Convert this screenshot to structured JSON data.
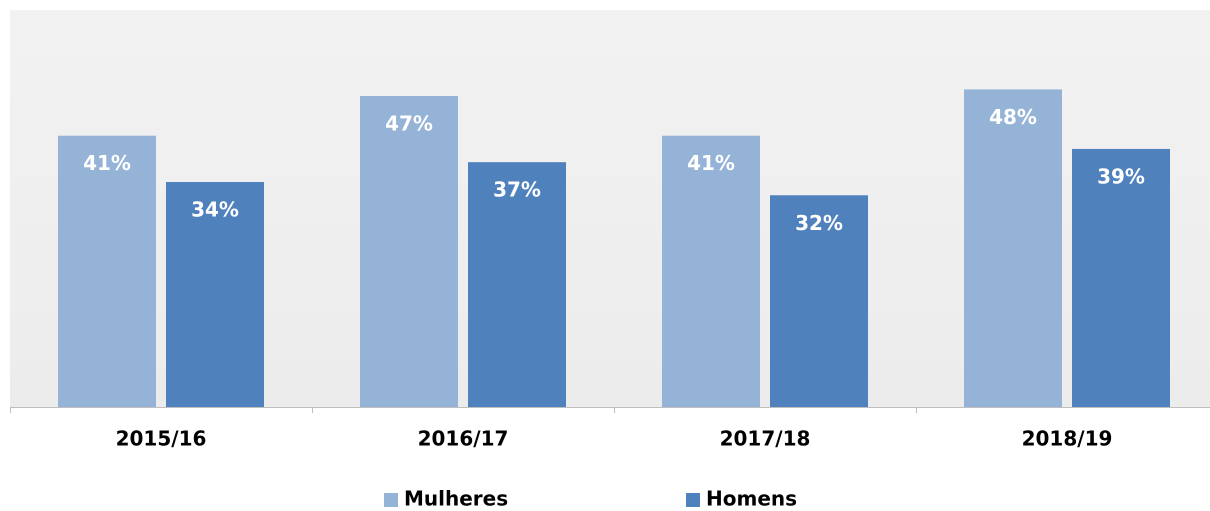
{
  "chart_data": {
    "type": "bar",
    "categories": [
      "2015/16",
      "2016/17",
      "2017/18",
      "2018/19"
    ],
    "series": [
      {
        "name": "Mulheres",
        "color": "#95b3d7",
        "values": [
          41,
          47,
          41,
          48
        ],
        "value_labels": [
          "41%",
          "47%",
          "41%",
          "48%"
        ]
      },
      {
        "name": "Homens",
        "color": "#4f81bd",
        "values": [
          34,
          37,
          32,
          39
        ],
        "value_labels": [
          "34%",
          "37%",
          "32%",
          "39%"
        ]
      }
    ],
    "ylim": [
      0,
      60
    ],
    "legend": "bottom"
  }
}
